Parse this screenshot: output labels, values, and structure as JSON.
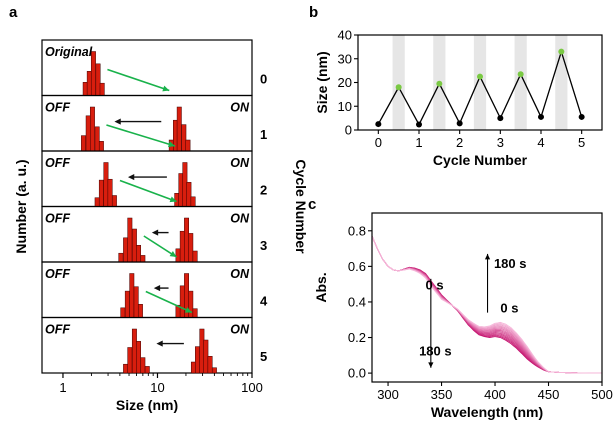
{
  "panels": {
    "a": "a",
    "b": "b",
    "c": "c"
  },
  "chart_data": [
    {
      "panel": "a",
      "type": "bar",
      "subtype": "stacked-histograms",
      "xlabel": "Size (nm)",
      "ylabel": "Number (a. u.)",
      "right_label": "Cycle Number",
      "xscale": "log",
      "xlim": [
        0.6,
        100
      ],
      "xticks": [
        1,
        10,
        100
      ],
      "xtick_labels": [
        "1",
        "10",
        "100"
      ],
      "bar_color": "#d81e0e",
      "bar_edge_color": "#400000",
      "arrow_colors": {
        "return": "#111111",
        "switch": "#19b24b"
      },
      "label_colors": {
        "state_off": "#000000",
        "state_on": "#0a9a3a"
      },
      "rows": [
        {
          "cycle": "0",
          "left_state": "Original",
          "right_state": "",
          "off_bins": [
            [
              1.72,
              0.3
            ],
            [
              1.9,
              0.55
            ],
            [
              2.1,
              1.0
            ],
            [
              2.35,
              0.72
            ],
            [
              2.6,
              0.28
            ]
          ],
          "on_bins": []
        },
        {
          "cycle": "1",
          "left_state": "OFF",
          "right_state": "ON",
          "off_bins": [
            [
              1.65,
              0.35
            ],
            [
              1.85,
              0.8
            ],
            [
              2.05,
              1.0
            ],
            [
              2.3,
              0.55
            ],
            [
              2.55,
              0.22
            ]
          ],
          "on_bins": [
            [
              14.0,
              0.25
            ],
            [
              15.5,
              0.7
            ],
            [
              17.0,
              1.0
            ],
            [
              19.0,
              0.6
            ],
            [
              21.0,
              0.25
            ]
          ]
        },
        {
          "cycle": "2",
          "left_state": "OFF",
          "right_state": "ON",
          "off_bins": [
            [
              2.3,
              0.2
            ],
            [
              2.55,
              0.6
            ],
            [
              2.85,
              1.0
            ],
            [
              3.15,
              0.62
            ],
            [
              3.5,
              0.25
            ]
          ],
          "on_bins": [
            [
              16.0,
              0.3
            ],
            [
              17.7,
              0.75
            ],
            [
              19.5,
              1.0
            ],
            [
              21.5,
              0.55
            ],
            [
              23.8,
              0.22
            ]
          ]
        },
        {
          "cycle": "3",
          "left_state": "OFF",
          "right_state": "ON",
          "off_bins": [
            [
              4.1,
              0.2
            ],
            [
              4.6,
              0.55
            ],
            [
              5.1,
              1.0
            ],
            [
              5.7,
              0.75
            ],
            [
              6.3,
              0.38
            ],
            [
              7.0,
              0.15
            ]
          ],
          "on_bins": [
            [
              16.5,
              0.3
            ],
            [
              18.3,
              0.7
            ],
            [
              20.3,
              1.0
            ],
            [
              22.5,
              0.65
            ],
            [
              25.0,
              0.25
            ]
          ]
        },
        {
          "cycle": "4",
          "left_state": "OFF",
          "right_state": "ON",
          "off_bins": [
            [
              4.3,
              0.22
            ],
            [
              4.8,
              0.6
            ],
            [
              5.35,
              1.0
            ],
            [
              5.95,
              0.7
            ],
            [
              6.6,
              0.3
            ]
          ],
          "on_bins": [
            [
              16.5,
              0.28
            ],
            [
              18.3,
              0.72
            ],
            [
              20.3,
              1.0
            ],
            [
              22.5,
              0.6
            ],
            [
              25.0,
              0.2
            ]
          ]
        },
        {
          "cycle": "5",
          "left_state": "OFF",
          "right_state": "ON",
          "off_bins": [
            [
              4.6,
              0.2
            ],
            [
              5.1,
              0.58
            ],
            [
              5.7,
              1.0
            ],
            [
              6.3,
              0.72
            ],
            [
              7.0,
              0.35
            ],
            [
              7.8,
              0.15
            ]
          ],
          "on_bins": [
            [
              24.0,
              0.25
            ],
            [
              26.5,
              0.6
            ],
            [
              29.5,
              1.0
            ],
            [
              32.5,
              0.75
            ],
            [
              36.0,
              0.38
            ],
            [
              40.0,
              0.12
            ]
          ]
        }
      ]
    },
    {
      "panel": "b",
      "type": "line",
      "xlabel": "Cycle Number",
      "ylabel": "Size (nm)",
      "xlim": [
        -0.5,
        5.5
      ],
      "ylim": [
        0,
        40
      ],
      "xticks": [
        0,
        1,
        2,
        3,
        4,
        5
      ],
      "yticks": [
        0,
        10,
        20,
        30,
        40
      ],
      "shade_color": "#e6e6e6",
      "shaded_bands": [
        [
          0.35,
          0.65
        ],
        [
          1.35,
          1.65
        ],
        [
          2.35,
          2.65
        ],
        [
          3.35,
          3.65
        ],
        [
          4.35,
          4.65
        ]
      ],
      "line_color": "#000000",
      "off_point_color": "#000000",
      "on_point_color": "#7ac943",
      "points": [
        {
          "x": 0.0,
          "y": 2.5,
          "state": "off"
        },
        {
          "x": 0.5,
          "y": 18,
          "state": "on"
        },
        {
          "x": 1.0,
          "y": 2.3,
          "state": "off"
        },
        {
          "x": 1.5,
          "y": 19.5,
          "state": "on"
        },
        {
          "x": 2.0,
          "y": 2.8,
          "state": "off"
        },
        {
          "x": 2.5,
          "y": 22.5,
          "state": "on"
        },
        {
          "x": 3.0,
          "y": 5,
          "state": "off"
        },
        {
          "x": 3.5,
          "y": 23.5,
          "state": "on"
        },
        {
          "x": 4.0,
          "y": 5.5,
          "state": "off"
        },
        {
          "x": 4.5,
          "y": 33,
          "state": "on"
        },
        {
          "x": 5.0,
          "y": 5.5,
          "state": "off"
        }
      ]
    },
    {
      "panel": "c",
      "type": "line",
      "xlabel": "Wavelength (nm)",
      "ylabel": "Abs.",
      "xlim": [
        285,
        500
      ],
      "ylim": [
        -0.05,
        0.9
      ],
      "xticks": [
        300,
        350,
        400,
        450,
        500
      ],
      "yticks": [
        0.0,
        0.2,
        0.4,
        0.6,
        0.8
      ],
      "ytick_labels": [
        "0.0",
        "0.2",
        "0.4",
        "0.6",
        "0.8"
      ],
      "series_color_dark": "#c4126e",
      "series_color_light": "#f6b8da",
      "series_count": 14,
      "base_spectrum": {
        "x": [
          285,
          290,
          295,
          300,
          305,
          310,
          315,
          320,
          325,
          330,
          335,
          340,
          345,
          350,
          355,
          360,
          365,
          370,
          375,
          380,
          385,
          390,
          395,
          400,
          405,
          410,
          415,
          420,
          425,
          430,
          435,
          440,
          445,
          450,
          460,
          470,
          480,
          490,
          500
        ],
        "y": [
          0.77,
          0.7,
          0.64,
          0.6,
          0.58,
          0.575,
          0.585,
          0.595,
          0.59,
          0.58,
          0.56,
          0.52,
          0.48,
          0.44,
          0.41,
          0.38,
          0.35,
          0.31,
          0.27,
          0.24,
          0.215,
          0.205,
          0.2,
          0.205,
          0.2,
          0.185,
          0.165,
          0.14,
          0.11,
          0.08,
          0.055,
          0.035,
          0.018,
          0.008,
          0.004,
          0.002,
          0.001,
          0.0,
          0.0
        ]
      },
      "final_bump": {
        "x": [
          300,
          310,
          320,
          330,
          340,
          350,
          360,
          370,
          380,
          390,
          395,
          400,
          405,
          410,
          415,
          420,
          425,
          430,
          435,
          440,
          445,
          450
        ],
        "dy": [
          0.0,
          0.0,
          -0.01,
          -0.02,
          -0.03,
          -0.025,
          0.0,
          0.02,
          0.04,
          0.055,
          0.065,
          0.075,
          0.085,
          0.09,
          0.09,
          0.085,
          0.08,
          0.07,
          0.05,
          0.03,
          0.015,
          0.0
        ]
      },
      "annotations": [
        {
          "text": "0 s",
          "at": [
            335,
            0.47
          ],
          "arrow": "none"
        },
        {
          "text": "180 s",
          "at": [
            329,
            0.1
          ],
          "arrow": "down",
          "arrow_from": [
            340,
            0.53
          ],
          "arrow_to": [
            340,
            0.03
          ]
        },
        {
          "text": "180 s",
          "at": [
            399,
            0.59
          ],
          "arrow": "up",
          "arrow_from": [
            393,
            0.34
          ],
          "arrow_to": [
            393,
            0.67
          ]
        },
        {
          "text": "0 s",
          "at": [
            405,
            0.34
          ],
          "arrow": "none"
        }
      ]
    }
  ]
}
